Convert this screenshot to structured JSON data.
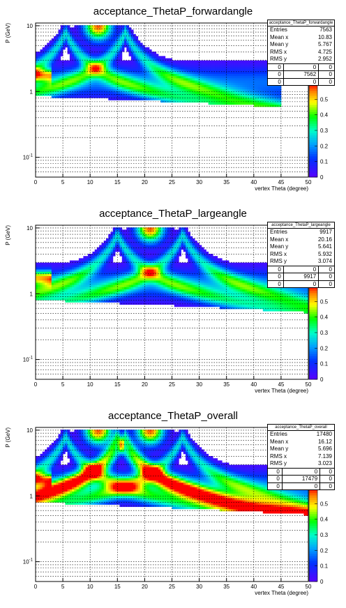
{
  "chart_data": [
    {
      "type": "heatmap",
      "title": "acceptance_ThetaP_forwardangle",
      "xlabel": "vertex Theta (degree)",
      "ylabel": "P (GeV)",
      "xlim": [
        0,
        50
      ],
      "ylim": [
        0.05,
        11
      ],
      "yscale": "log",
      "x_ticks": [
        "0",
        "5",
        "10",
        "15",
        "20",
        "25",
        "30",
        "35",
        "40",
        "45",
        "50"
      ],
      "y_ticks": [
        "10^-1",
        "1",
        "10"
      ],
      "z_ticks": [
        "0",
        "0.1",
        "0.2",
        "0.3",
        "0.4",
        "0.5"
      ],
      "grid": true,
      "stats": {
        "name": "acceptance_ThetaP_forwardangle",
        "entries": "7563",
        "mean_x": "10.83",
        "mean_y": "5.767",
        "rms_x": "4.725",
        "rms_y": "2.952",
        "table": [
          [
            "0",
            "0",
            "0"
          ],
          [
            "0",
            "7562",
            "0"
          ],
          [
            "0",
            "0",
            "0"
          ]
        ]
      },
      "features": {
        "peak_centers": [
          11.5
        ],
        "band_centers": [
          5.5,
          16.5
        ],
        "x_extent": 45,
        "low_p_edge": 0.85
      }
    },
    {
      "type": "heatmap",
      "title": "acceptance_ThetaP_largeangle",
      "xlabel": "vertex Theta (degree)",
      "ylabel": "P (GeV)",
      "xlim": [
        0,
        50
      ],
      "ylim": [
        0.05,
        11
      ],
      "yscale": "log",
      "x_ticks": [
        "0",
        "5",
        "10",
        "15",
        "20",
        "25",
        "30",
        "35",
        "40",
        "45",
        "50"
      ],
      "y_ticks": [
        "10^-1",
        "1",
        "10"
      ],
      "z_ticks": [
        "0",
        "0.1",
        "0.2",
        "0.3",
        "0.4",
        "0.5"
      ],
      "grid": true,
      "stats": {
        "name": "acceptance_ThetaP_largeangle",
        "entries": "9917",
        "mean_x": "20.16",
        "mean_y": "5.641",
        "rms_x": "5.932",
        "rms_y": "3.074",
        "table": [
          [
            "0",
            "0",
            "0"
          ],
          [
            "0",
            "9917",
            "0"
          ],
          [
            "0",
            "0",
            "0"
          ]
        ]
      },
      "features": {
        "peak_centers": [
          21
        ],
        "band_centers": [
          15,
          27
        ],
        "x_extent": 50,
        "low_p_edge": 0.8
      }
    },
    {
      "type": "heatmap",
      "title": "acceptance_ThetaP_overall",
      "xlabel": "vertex Theta (degree)",
      "ylabel": "P (GeV)",
      "xlim": [
        0,
        50
      ],
      "ylim": [
        0.05,
        11
      ],
      "yscale": "log",
      "x_ticks": [
        "0",
        "5",
        "10",
        "15",
        "20",
        "25",
        "30",
        "35",
        "40",
        "45",
        "50"
      ],
      "y_ticks": [
        "10^-1",
        "1",
        "10"
      ],
      "z_ticks": [
        "0",
        "0.1",
        "0.2",
        "0.3",
        "0.4",
        "0.5"
      ],
      "grid": true,
      "stats": {
        "name": "acceptance_ThetaP_overall",
        "entries": "17480",
        "mean_x": "16.12",
        "mean_y": "5.696",
        "rms_x": "7.139",
        "rms_y": "3.023",
        "table": [
          [
            "0",
            "0",
            "0"
          ],
          [
            "0",
            "17479",
            "0"
          ],
          [
            "0",
            "0",
            "0"
          ]
        ]
      },
      "features": {
        "peak_centers": [
          11.5,
          21
        ],
        "band_centers": [
          5.5,
          16.5,
          15,
          27
        ],
        "x_extent": 50,
        "low_p_edge": 0.8
      }
    }
  ]
}
